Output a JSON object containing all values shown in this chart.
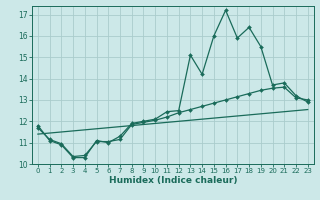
{
  "title": "",
  "xlabel": "Humidex (Indice chaleur)",
  "ylabel": "",
  "bg_color": "#cce8e8",
  "grid_color": "#aacccc",
  "line_color": "#1a6b5a",
  "xlim": [
    -0.5,
    23.5
  ],
  "ylim": [
    10,
    17.4
  ],
  "yticks": [
    10,
    11,
    12,
    13,
    14,
    15,
    16,
    17
  ],
  "xticks": [
    0,
    1,
    2,
    3,
    4,
    5,
    6,
    7,
    8,
    9,
    10,
    11,
    12,
    13,
    14,
    15,
    16,
    17,
    18,
    19,
    20,
    21,
    22,
    23
  ],
  "line1_x": [
    0,
    1,
    2,
    3,
    4,
    5,
    6,
    7,
    8,
    9,
    10,
    11,
    12,
    13,
    14,
    15,
    16,
    17,
    18,
    19,
    20,
    21,
    22,
    23
  ],
  "line1_y": [
    11.8,
    11.1,
    10.9,
    10.3,
    10.3,
    11.1,
    11.0,
    11.3,
    11.9,
    12.0,
    12.1,
    12.45,
    12.5,
    15.1,
    14.2,
    16.0,
    17.2,
    15.9,
    16.4,
    15.5,
    13.7,
    13.8,
    13.2,
    12.9
  ],
  "line2_x": [
    0,
    1,
    2,
    3,
    4,
    5,
    6,
    7,
    8,
    9,
    10,
    11,
    12,
    13,
    14,
    15,
    16,
    17,
    18,
    19,
    20,
    21,
    22,
    23
  ],
  "line2_y": [
    11.7,
    11.15,
    10.95,
    10.35,
    10.4,
    11.05,
    11.05,
    11.15,
    11.85,
    11.95,
    12.05,
    12.2,
    12.4,
    12.55,
    12.7,
    12.85,
    13.0,
    13.15,
    13.3,
    13.45,
    13.55,
    13.6,
    13.1,
    13.0
  ],
  "line3_x": [
    0,
    23
  ],
  "line3_y": [
    11.4,
    12.55
  ]
}
